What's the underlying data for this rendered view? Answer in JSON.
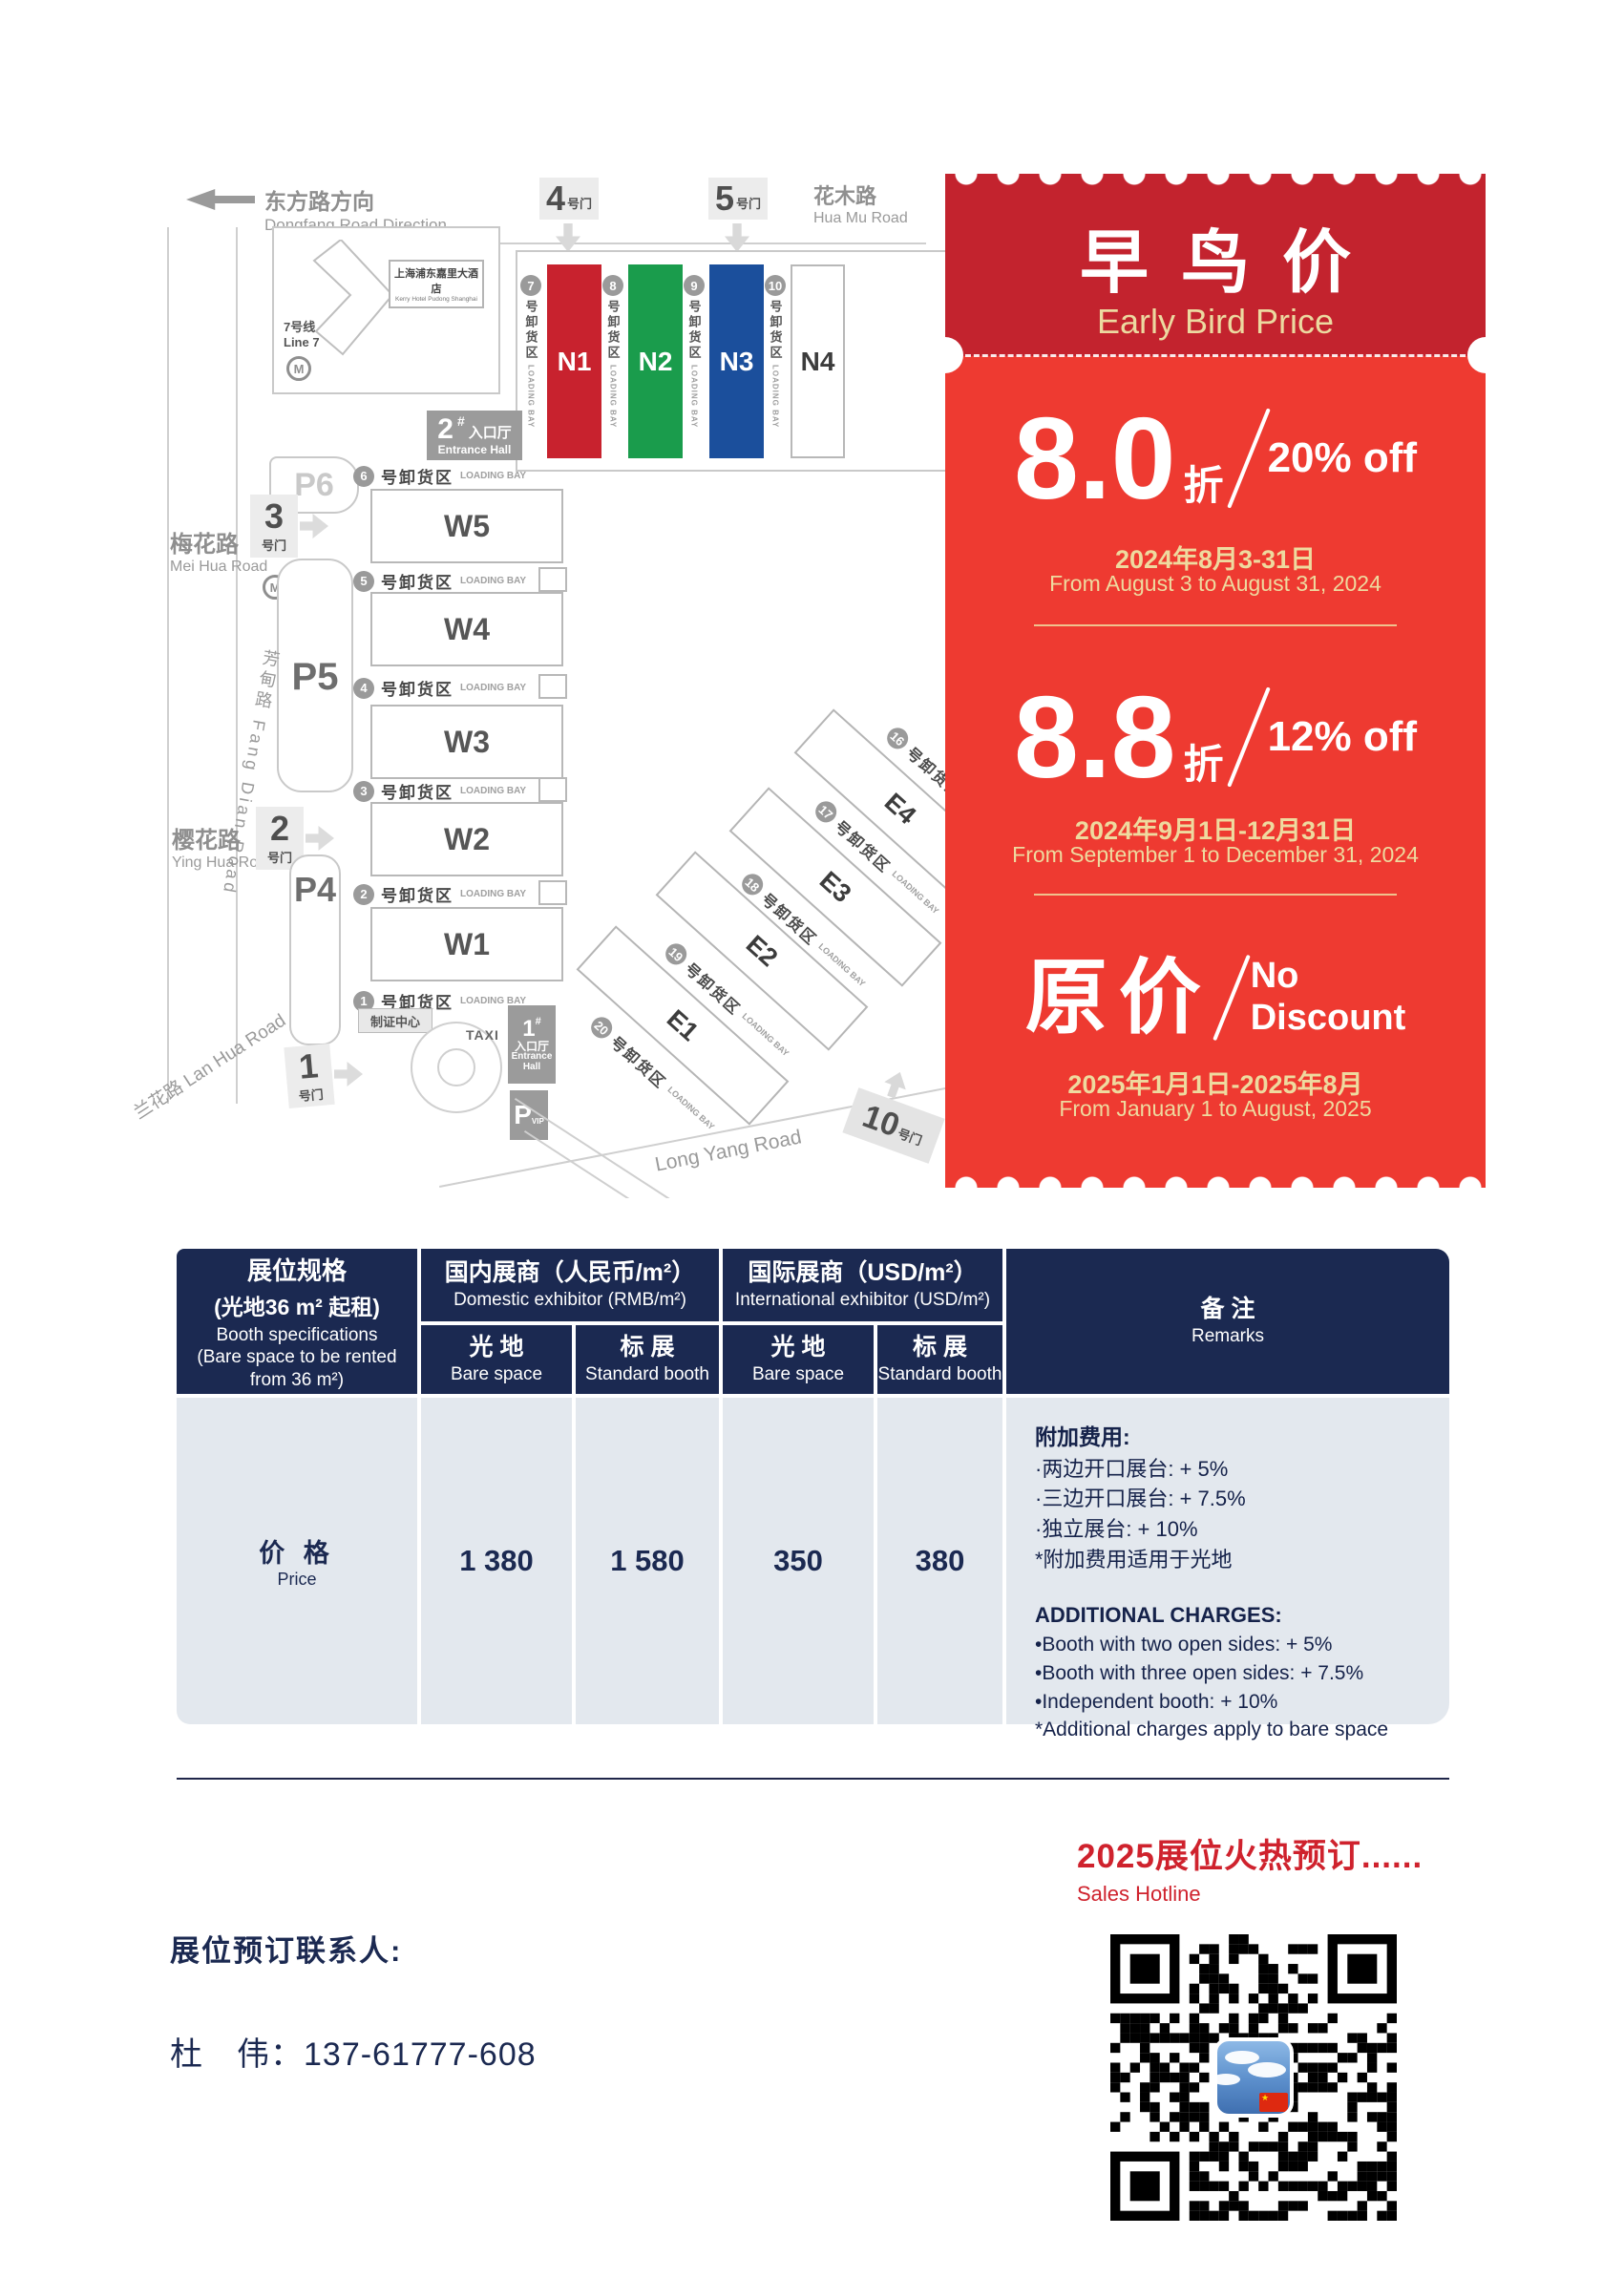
{
  "map": {
    "direction_zh": "东方路方向",
    "direction_en": "Dongfang Road Direction",
    "hua_mu_zh": "花木路",
    "hua_mu_en": "Hua Mu Road",
    "mei_hua_zh": "梅花路",
    "mei_hua_en": "Mei Hua Road",
    "ying_hua_zh": "樱花路",
    "ying_hua_en": "Ying Hua Road",
    "lan_hua": "兰花路 Lan Hua Road",
    "fang_dian": "芳甸路 Fang Dian Road",
    "long_yang": "Long Yang Road",
    "hotel_zh": "上海浦东嘉里大酒店",
    "hotel_en": "Kerry Hotel Pudong Shanghai",
    "metro_zh": "7号线",
    "metro_en": "Line 7",
    "gate_suffix": "号门",
    "gate4_num": "4",
    "gate5_num": "5",
    "gate3_num": "3",
    "gate2_num": "2",
    "gate1_num": "1",
    "gate10_num": "10",
    "p6": "P6",
    "p5": "P5",
    "p4": "P4",
    "pvip": "P",
    "pvip_sub": "VIP",
    "ent_hash": "#",
    "ent2_num": "2",
    "ent1_num": "1",
    "ent_zh": "入口厅",
    "ent_en": "Entrance Hall",
    "ent_en_l1": "Entrance",
    "ent_en_l2": "Hall",
    "cert": "制证中心",
    "taxi": "TAXI",
    "bay_zh": "号卸货区",
    "bay_en": "LOADING BAY",
    "halls_n": [
      "N1",
      "N2",
      "N3",
      "N4"
    ],
    "halls_w": [
      "W5",
      "W4",
      "W3",
      "W2",
      "W1"
    ],
    "halls_e": [
      "E4",
      "E3",
      "E2",
      "E1"
    ],
    "bays_n": [
      "7",
      "8",
      "9",
      "10"
    ],
    "bays_w": [
      "6",
      "5",
      "4",
      "3",
      "2",
      "1"
    ],
    "bays_e": [
      "16",
      "17",
      "18",
      "19",
      "20"
    ]
  },
  "ticket": {
    "title_zh": "早鸟价",
    "title_en": "Early Bird Price",
    "tier1_big": "8.0",
    "tier1_unit": "折",
    "tier1_off": "20% off",
    "tier1_date_zh": "2024年8月3-31日",
    "tier1_date_en": "From August 3 to August 31, 2024",
    "tier2_big": "8.8",
    "tier2_unit": "折",
    "tier2_off": "12% off",
    "tier2_date_zh": "2024年9月1日-12月31日",
    "tier2_date_en": "From September 1 to December 31, 2024",
    "tier3_big": "原价",
    "tier3_off1": "No",
    "tier3_off2": "Discount",
    "tier3_date_zh": "2025年1月1日-2025年8月",
    "tier3_date_en": "From January 1 to August, 2025"
  },
  "table": {
    "spec_l1": "展位规格",
    "spec_l2": "(光地36 m² 起租)",
    "spec_l3": "Booth specifications",
    "spec_l4": "(Bare space to be rented from 36 m²)",
    "g1_zh": "国内展商（人民币/m²）",
    "g1_en": "Domestic exhibitor (RMB/m²)",
    "g2_zh": "国际展商（USD/m²）",
    "g2_en": "International exhibitor (USD/m²)",
    "bare_zh": "光 地",
    "bare_en": "Bare space",
    "std_zh": "标 展",
    "std_en": "Standard booth",
    "remarks_zh": "备 注",
    "remarks_en": "Remarks",
    "price_zh": "价 格",
    "price_en": "Price",
    "values": [
      "1 380",
      "1 580",
      "350",
      "380"
    ],
    "r_zh_title": "附加费用:",
    "r_zh_items": [
      "·两边开口展台: + 5%",
      "·三边开口展台: + 7.5%",
      "·独立展台: + 10%",
      "*附加费用适用于光地"
    ],
    "r_en_title": "ADDITIONAL CHARGES:",
    "r_en_items": [
      "•Booth with two open sides: + 5%",
      "•Booth with three open sides: + 7.5%",
      "•Independent booth: + 10%",
      "*Additional charges apply to bare space"
    ]
  },
  "footer": {
    "hotline_zh": "2025展位火热预订......",
    "hotline_en": "Sales Hotline",
    "contact_label": "展位预订联系人:",
    "contact_name": "杜　伟：",
    "contact_phone": "137-61777-608"
  },
  "colors": {
    "ticket_dark_red": "#c3232e",
    "ticket_bright_red": "#ee3a31",
    "gold": "#eeda9f",
    "table_navy": "#1b2951",
    "table_body": "#e3e8ee",
    "hall_n1_red": "#c8222e",
    "hall_n2_green": "#1a9c4c",
    "hall_n3_blue": "#1b4f9c",
    "hotline_red": "#cf222d"
  }
}
